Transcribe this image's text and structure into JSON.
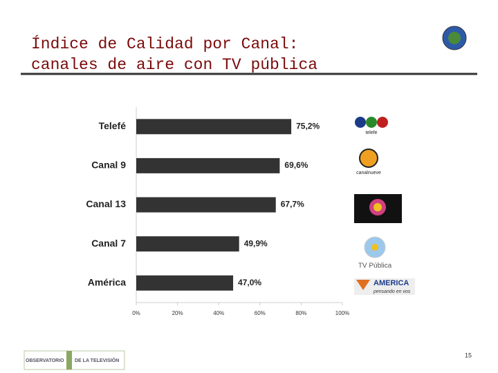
{
  "chart_data": {
    "type": "bar",
    "orientation": "horizontal",
    "title": "Índice de Calidad por Canal:",
    "subtitle": "canales de aire con TV pública",
    "categories": [
      "Telefé",
      "Canal 9",
      "Canal 13",
      "Canal 7",
      "América"
    ],
    "values": [
      75.2,
      69.6,
      67.7,
      49.9,
      47.0
    ],
    "value_labels": [
      "75,2%",
      "69,6%",
      "67,7%",
      "49,9%",
      "47,0%"
    ],
    "color": "#333333",
    "xlim": [
      0,
      100
    ],
    "xticks": [
      {
        "value": 0,
        "label": "0%"
      },
      {
        "value": 20,
        "label": "20%"
      },
      {
        "value": 40,
        "label": "40%"
      },
      {
        "value": 60,
        "label": "60%"
      },
      {
        "value": 80,
        "label": "80%"
      },
      {
        "value": 100,
        "label": "100%"
      }
    ],
    "grid": false
  },
  "slide": {
    "page_number": "15",
    "footer": [
      "OBSERVATORIO",
      "DE LA TELEVISIÓN"
    ],
    "logos": [
      "telefe",
      "canalnueve",
      "TV Pública",
      "AMERICA",
      "pensando en vos"
    ]
  }
}
